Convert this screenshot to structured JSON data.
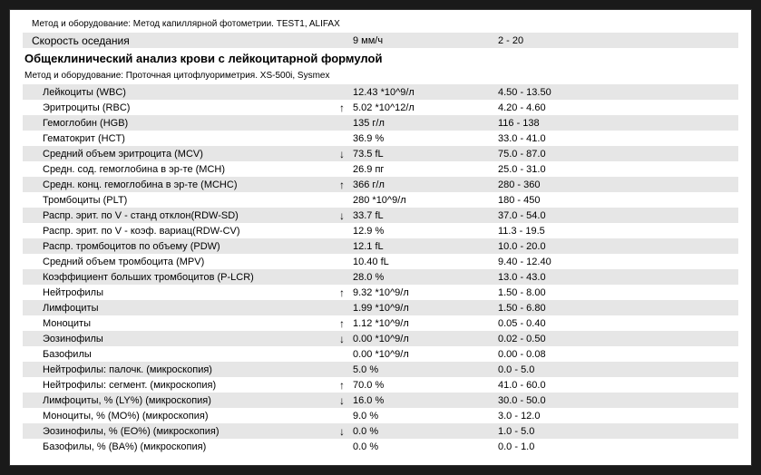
{
  "method1": "Метод и оборудование:  Метод капиллярной фотометрии. TEST1, ALIFAX",
  "esr": {
    "name": "Скорость оседания",
    "value": "9 мм/ч",
    "ref": "2 - 20"
  },
  "section_title": "Общеклинический анализ крови с лейкоцитарной формулой",
  "method2": "Метод и оборудование:  Проточная цитофлуориметрия. XS-500i, Sysmex",
  "rows": [
    {
      "name": "Лейкоциты (WBC)",
      "arrow": "",
      "value": "12.43 *10^9/л",
      "ref": "4.50 - 13.50"
    },
    {
      "name": "Эритроциты (RBC)",
      "arrow": "↑",
      "value": "5.02 *10^12/л",
      "ref": "4.20 - 4.60"
    },
    {
      "name": "Гемоглобин (HGB)",
      "arrow": "",
      "value": "135 г/л",
      "ref": "116 - 138"
    },
    {
      "name": "Гематокрит (HCT)",
      "arrow": "",
      "value": "36.9 %",
      "ref": "33.0 - 41.0"
    },
    {
      "name": "Средний объем эритроцита (MCV)",
      "arrow": "↓",
      "value": "73.5 fL",
      "ref": "75.0 - 87.0"
    },
    {
      "name": "Средн. сод. гемоглобина в эр-те (MCH)",
      "arrow": "",
      "value": "26.9 пг",
      "ref": "25.0 - 31.0"
    },
    {
      "name": "Средн. конц. гемоглобина в эр-те (MCHC)",
      "arrow": "↑",
      "value": "366 г/л",
      "ref": "280 - 360"
    },
    {
      "name": "Тромбоциты (PLT)",
      "arrow": "",
      "value": "280 *10^9/л",
      "ref": "180 - 450"
    },
    {
      "name": "Распр. эрит. по V - станд отклон(RDW-SD)",
      "arrow": "↓",
      "value": "33.7 fL",
      "ref": "37.0 - 54.0"
    },
    {
      "name": "Распр. эрит. по V - коэф. вариац(RDW-CV)",
      "arrow": "",
      "value": "12.9 %",
      "ref": "11.3 - 19.5"
    },
    {
      "name": "Распр. тромбоцитов по объему (PDW)",
      "arrow": "",
      "value": "12.1 fL",
      "ref": "10.0 - 20.0"
    },
    {
      "name": "Средний объем тромбоцита (MPV)",
      "arrow": "",
      "value": "10.40 fL",
      "ref": "9.40 - 12.40"
    },
    {
      "name": "Коэффициент больших тромбоцитов (P-LCR)",
      "arrow": "",
      "value": "28.0 %",
      "ref": "13.0 - 43.0"
    },
    {
      "name": "Нейтрофилы",
      "arrow": "↑",
      "value": "9.32 *10^9/л",
      "ref": "1.50 - 8.00"
    },
    {
      "name": "Лимфоциты",
      "arrow": "",
      "value": "1.99 *10^9/л",
      "ref": "1.50 - 6.80"
    },
    {
      "name": "Моноциты",
      "arrow": "↑",
      "value": "1.12 *10^9/л",
      "ref": "0.05 - 0.40"
    },
    {
      "name": "Эозинофилы",
      "arrow": "↓",
      "value": "0.00 *10^9/л",
      "ref": "0.02 - 0.50"
    },
    {
      "name": "Базофилы",
      "arrow": "",
      "value": "0.00 *10^9/л",
      "ref": "0.00 - 0.08"
    },
    {
      "name": "Нейтрофилы: палочк. (микроскопия)",
      "arrow": "",
      "value": "5.0 %",
      "ref": "0.0 - 5.0"
    },
    {
      "name": "Нейтрофилы: сегмент. (микроскопия)",
      "arrow": "↑",
      "value": "70.0 %",
      "ref": "41.0 - 60.0"
    },
    {
      "name": "Лимфоциты, % (LY%) (микроскопия)",
      "arrow": "↓",
      "value": "16.0 %",
      "ref": "30.0 - 50.0"
    },
    {
      "name": "Моноциты, % (MO%) (микроскопия)",
      "arrow": "",
      "value": "9.0 %",
      "ref": "3.0 - 12.0"
    },
    {
      "name": "Эозинофилы, % (EO%) (микроскопия)",
      "arrow": "↓",
      "value": "0.0 %",
      "ref": "1.0 - 5.0"
    },
    {
      "name": "Базофилы, % (BA%) (микроскопия)",
      "arrow": "",
      "value": "0.0 %",
      "ref": "0.0 - 1.0"
    }
  ]
}
